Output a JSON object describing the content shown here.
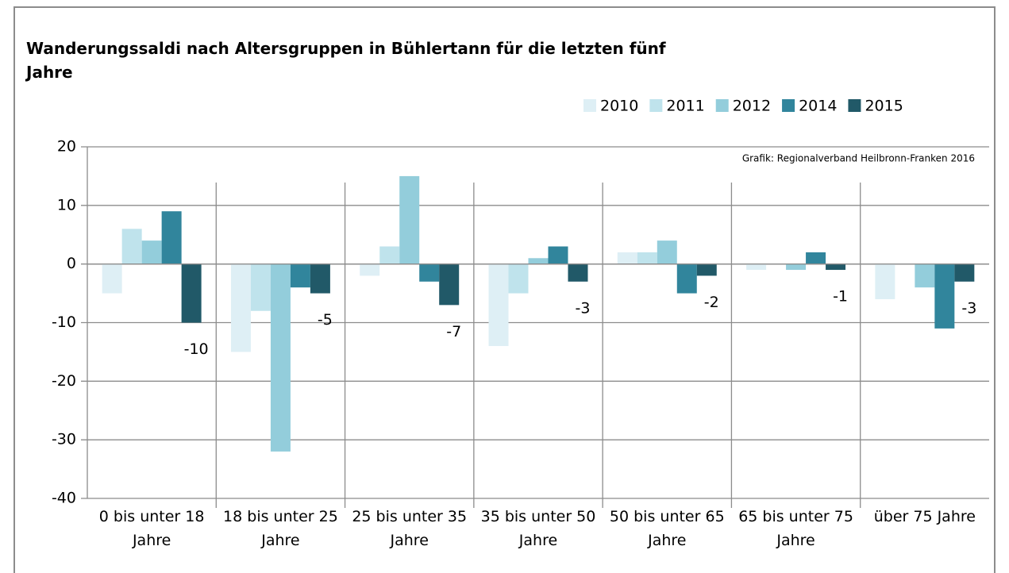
{
  "chart_data": {
    "type": "bar",
    "title": "Wanderungssaldi nach Altersgruppen in Bühlertann für die letzten fünf Jahre",
    "annotation": "Grafik: Regionalverband Heilbronn-Franken 2016",
    "categories": [
      "0 bis unter 18 Jahre",
      "18 bis unter 25 Jahre",
      "25 bis unter 35 Jahre",
      "35 bis unter 50 Jahre",
      "50 bis unter 65 Jahre",
      "65 bis unter 75 Jahre",
      "über 75 Jahre"
    ],
    "series": [
      {
        "name": "2010",
        "color": "#deeff5",
        "values": [
          -5,
          -15,
          -2,
          -14,
          2,
          -1,
          -6
        ]
      },
      {
        "name": "2011",
        "color": "#bfe3ec",
        "values": [
          6,
          -8,
          3,
          -5,
          2,
          0,
          0
        ]
      },
      {
        "name": "2012",
        "color": "#93cddb",
        "values": [
          4,
          -32,
          15,
          1,
          4,
          -1,
          -4
        ]
      },
      {
        "name": "2014",
        "color": "#31859c",
        "values": [
          9,
          -4,
          -3,
          3,
          -5,
          2,
          -11
        ]
      },
      {
        "name": "2015",
        "color": "#215968",
        "values": [
          -10,
          -5,
          -7,
          -3,
          -2,
          -1,
          -3
        ],
        "data_labels": true
      }
    ],
    "ylim": [
      -40,
      20
    ],
    "yticks": [
      -40,
      -30,
      -20,
      -10,
      0,
      10,
      20
    ],
    "grid": true,
    "legend": "top-right"
  }
}
